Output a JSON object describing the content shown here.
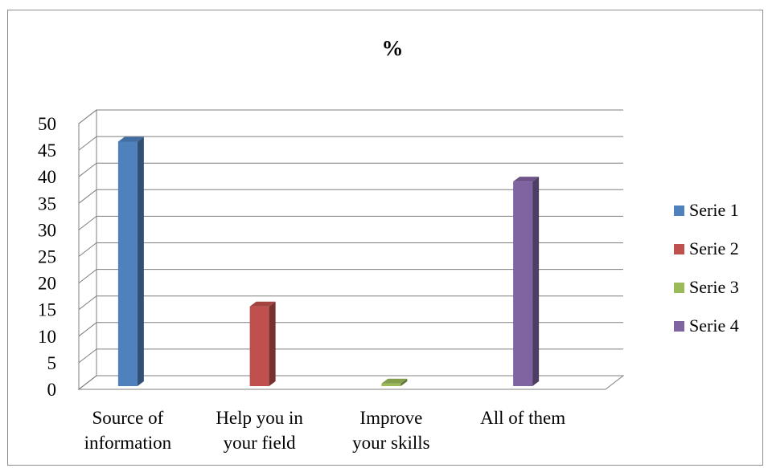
{
  "chart_data": {
    "type": "bar",
    "title": "%",
    "categories": [
      [
        "Source of",
        "information"
      ],
      [
        "Help you in",
        "your field"
      ],
      [
        "Improve",
        "your skills"
      ],
      [
        "All of them"
      ]
    ],
    "series": [
      {
        "name": "Serie 1",
        "color": "#4f81bd",
        "values": [
          46,
          0,
          0,
          0
        ]
      },
      {
        "name": "Serie 2",
        "color": "#c0504d",
        "values": [
          0,
          15,
          0,
          0
        ]
      },
      {
        "name": "Serie 3",
        "color": "#9bbb59",
        "values": [
          0,
          0,
          0.5,
          0
        ]
      },
      {
        "name": "Serie 4",
        "color": "#8064a2",
        "values": [
          0,
          0,
          0,
          38.5
        ]
      }
    ],
    "ylim": [
      0,
      50
    ],
    "yticks": [
      0,
      5,
      10,
      15,
      20,
      25,
      30,
      35,
      40,
      45,
      50
    ],
    "grid": true,
    "style": "3d-clustered-column",
    "legend_position": "right"
  }
}
